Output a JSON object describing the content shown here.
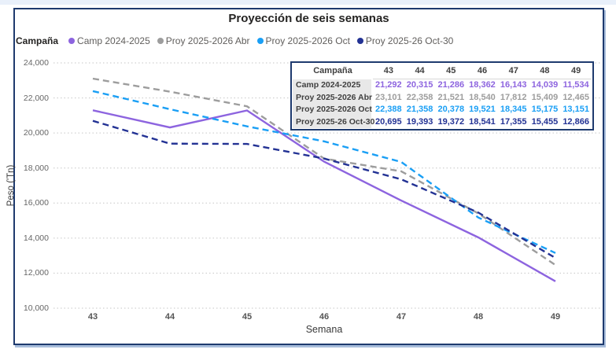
{
  "page": {
    "title": "Proyección de seis semanas",
    "legend_title": "Campaña",
    "x_axis_title": "Semana",
    "y_axis_title": "Peso ('Tn)"
  },
  "colors": {
    "frame": "#1e3a6e",
    "top_strip": "#e9f0fa",
    "grid": "#c6c6c6",
    "series_purple": "#8d64df",
    "series_gray": "#9d9d9d",
    "series_lightblue": "#1a9ff5",
    "series_navy": "#233294"
  },
  "chart_data": {
    "type": "line",
    "title": "Proyección de seis semanas",
    "xlabel": "Semana",
    "ylabel": "Peso ('Tn)",
    "categories": [
      43,
      44,
      45,
      46,
      47,
      48,
      49
    ],
    "ylim": [
      10000,
      24000
    ],
    "y_ticks": [
      10000,
      12000,
      14000,
      16000,
      18000,
      20000,
      22000,
      24000
    ],
    "grid": "horizontal-dotted",
    "legend_position": "top-left",
    "series": [
      {
        "name": "Camp 2024-2025",
        "color": "#8d64df",
        "dash": "solid",
        "values": [
          21292,
          20315,
          21286,
          18362,
          16143,
          14039,
          11534
        ]
      },
      {
        "name": "Proy 2025-2026 Abr",
        "color": "#9d9d9d",
        "dash": "dashed",
        "values": [
          23101,
          22358,
          21521,
          18540,
          17812,
          15409,
          12465
        ]
      },
      {
        "name": "Proy 2025-2026 Oct",
        "color": "#1a9ff5",
        "dash": "dashed",
        "values": [
          22388,
          21358,
          20378,
          19521,
          18345,
          15175,
          13151
        ]
      },
      {
        "name": "Proy 2025-26 Oct-30",
        "color": "#233294",
        "dash": "dashed",
        "values": [
          20695,
          19393,
          19372,
          18541,
          17355,
          15455,
          12866
        ]
      }
    ]
  },
  "table": {
    "header": [
      "Campaña",
      "43",
      "44",
      "45",
      "46",
      "47",
      "48",
      "49"
    ],
    "rows": [
      {
        "label": "Camp 2024-2025",
        "color": "#8d64df",
        "values": [
          "21,292",
          "20,315",
          "21,286",
          "18,362",
          "16,143",
          "14,039",
          "11,534"
        ]
      },
      {
        "label": "Proy 2025-2026 Abr",
        "color": "#9d9d9d",
        "values": [
          "23,101",
          "22,358",
          "21,521",
          "18,540",
          "17,812",
          "15,409",
          "12,465"
        ]
      },
      {
        "label": "Proy 2025-2026 Oct",
        "color": "#1a9ff5",
        "values": [
          "22,388",
          "21,358",
          "20,378",
          "19,521",
          "18,345",
          "15,175",
          "13,151"
        ]
      },
      {
        "label": "Proy 2025-26 Oct-30",
        "color": "#233294",
        "values": [
          "20,695",
          "19,393",
          "19,372",
          "18,541",
          "17,355",
          "15,455",
          "12,866"
        ]
      }
    ]
  }
}
